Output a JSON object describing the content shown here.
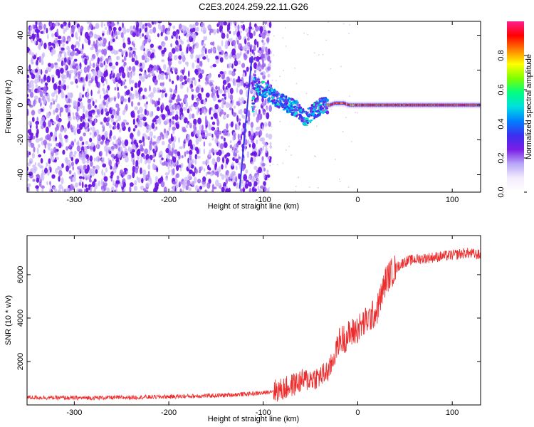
{
  "title": "C2E3.2024.259.22.11.G26",
  "chart_data": [
    {
      "type": "heatmap",
      "xlabel": "Height of straight line (km)",
      "ylabel": "Frequency (Hz)",
      "xlim": [
        -350,
        130
      ],
      "ylim": [
        -50,
        48
      ],
      "xticks": [
        -300,
        -200,
        -100,
        0,
        100
      ],
      "yticks": [
        -40,
        -20,
        0,
        20,
        40
      ],
      "colorbar": {
        "label": "Normalized spectral amplitude",
        "range": [
          0.0,
          1.0
        ],
        "ticks": [
          "0.0",
          "0.2",
          "0.4",
          "0.6",
          "0.8"
        ],
        "tick_values": [
          0.0,
          0.2,
          0.4,
          0.6,
          0.8
        ],
        "colormap": [
          "#ffffff",
          "#f4ecfd",
          "#b7a6f7",
          "#7a1ee6",
          "#3b2ff0",
          "#0080ff",
          "#00e0e0",
          "#00ff80",
          "#7fff00",
          "#ffff00",
          "#ff8000",
          "#ff0000",
          "#ff1f8f"
        ]
      },
      "noise_region_x": [
        -350,
        -100
      ],
      "signal_track": [
        {
          "x": -110,
          "y": 14
        },
        {
          "x": -105,
          "y": 10
        },
        {
          "x": -100,
          "y": 9
        },
        {
          "x": -95,
          "y": 7
        },
        {
          "x": -90,
          "y": 5
        },
        {
          "x": -85,
          "y": 3
        },
        {
          "x": -80,
          "y": 2
        },
        {
          "x": -75,
          "y": 0
        },
        {
          "x": -70,
          "y": -1
        },
        {
          "x": -65,
          "y": -2
        },
        {
          "x": -60,
          "y": -4
        },
        {
          "x": -55,
          "y": -8
        },
        {
          "x": -50,
          "y": -5
        },
        {
          "x": -45,
          "y": -3
        },
        {
          "x": -40,
          "y": -1
        },
        {
          "x": -35,
          "y": 0
        },
        {
          "x": -30,
          "y": 0
        },
        {
          "x": -25,
          "y": 1
        },
        {
          "x": -20,
          "y": 1
        },
        {
          "x": -15,
          "y": 1
        },
        {
          "x": -10,
          "y": 0
        },
        {
          "x": 0,
          "y": 0
        },
        {
          "x": 20,
          "y": 0
        },
        {
          "x": 60,
          "y": 0
        },
        {
          "x": 100,
          "y": 0
        },
        {
          "x": 130,
          "y": 0
        }
      ],
      "streak": {
        "x": [
          -125,
          -112
        ],
        "y": [
          -48,
          28
        ]
      }
    },
    {
      "type": "line",
      "xlabel": "Height of straight line (km)",
      "ylabel": "SNR (10 * v/v)",
      "xlim": [
        -350,
        130
      ],
      "ylim": [
        0,
        7800
      ],
      "xticks": [
        -300,
        -200,
        -100,
        0,
        100
      ],
      "yticks": [
        2000,
        4000,
        6000
      ],
      "color": "#ee2a2a",
      "trend": [
        {
          "x": -350,
          "y": 350
        },
        {
          "x": -300,
          "y": 320
        },
        {
          "x": -250,
          "y": 340
        },
        {
          "x": -200,
          "y": 380
        },
        {
          "x": -150,
          "y": 430
        },
        {
          "x": -120,
          "y": 500
        },
        {
          "x": -100,
          "y": 550
        },
        {
          "x": -90,
          "y": 650
        },
        {
          "x": -80,
          "y": 700
        },
        {
          "x": -70,
          "y": 900
        },
        {
          "x": -60,
          "y": 1100
        },
        {
          "x": -50,
          "y": 1200
        },
        {
          "x": -40,
          "y": 1300
        },
        {
          "x": -30,
          "y": 1600
        },
        {
          "x": -20,
          "y": 2900
        },
        {
          "x": -10,
          "y": 3200
        },
        {
          "x": 0,
          "y": 3500
        },
        {
          "x": 10,
          "y": 3900
        },
        {
          "x": 20,
          "y": 4300
        },
        {
          "x": 30,
          "y": 5800
        },
        {
          "x": 40,
          "y": 6300
        },
        {
          "x": 50,
          "y": 6600
        },
        {
          "x": 60,
          "y": 6700
        },
        {
          "x": 80,
          "y": 6800
        },
        {
          "x": 100,
          "y": 6900
        },
        {
          "x": 115,
          "y": 7000
        },
        {
          "x": 130,
          "y": 6900
        }
      ]
    }
  ]
}
